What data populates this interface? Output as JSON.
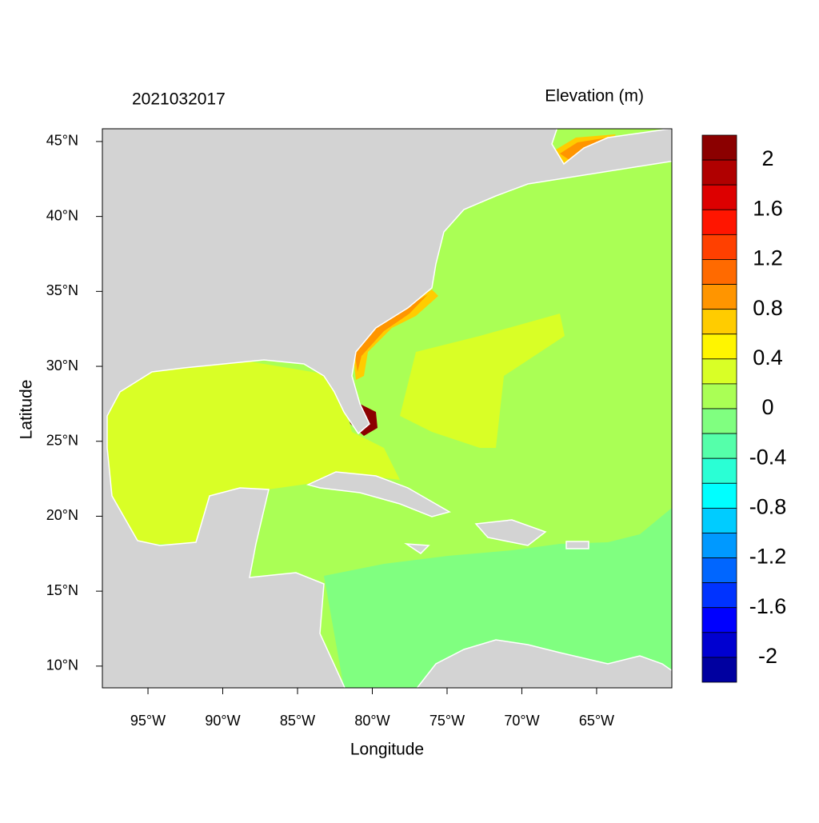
{
  "chart_data": {
    "type": "contour-map",
    "title": "2021032017",
    "colorbar_title": "Elevation (m)",
    "x_label": "Longitude",
    "y_label": "Latitude",
    "xlim": [
      -98.05,
      -59.97
    ],
    "ylim": [
      8.55,
      45.85
    ],
    "xticks": [
      {
        "value": -95,
        "label": "95°W"
      },
      {
        "value": -90,
        "label": "90°W"
      },
      {
        "value": -85,
        "label": "85°W"
      },
      {
        "value": -80,
        "label": "80°W"
      },
      {
        "value": -75,
        "label": "75°W"
      },
      {
        "value": -70,
        "label": "70°W"
      },
      {
        "value": -65,
        "label": "65°W"
      }
    ],
    "yticks": [
      {
        "value": 10,
        "label": "10°N"
      },
      {
        "value": 15,
        "label": "15°N"
      },
      {
        "value": 20,
        "label": "20°N"
      },
      {
        "value": 25,
        "label": "25°N"
      },
      {
        "value": 30,
        "label": "30°N"
      },
      {
        "value": 35,
        "label": "35°N"
      },
      {
        "value": 40,
        "label": "40°N"
      },
      {
        "value": 45,
        "label": "45°N"
      }
    ],
    "colorbar": {
      "levels": [
        2,
        1.6,
        1.2,
        0.8,
        0.4,
        0,
        -0.4,
        -0.8,
        -1.2,
        -1.6,
        -2
      ],
      "colors": [
        "#8b0000",
        "#b00000",
        "#dd0000",
        "#ff1500",
        "#ff4000",
        "#ff6a00",
        "#ff9500",
        "#ffcc00",
        "#fff500",
        "#d9ff26",
        "#aaff55",
        "#80ff80",
        "#55ffaa",
        "#2affd5",
        "#00ffff",
        "#00ccff",
        "#0099ff",
        "#0066ff",
        "#0033ff",
        "#0000ff",
        "#0000d0",
        "#0000a0"
      ]
    }
  }
}
